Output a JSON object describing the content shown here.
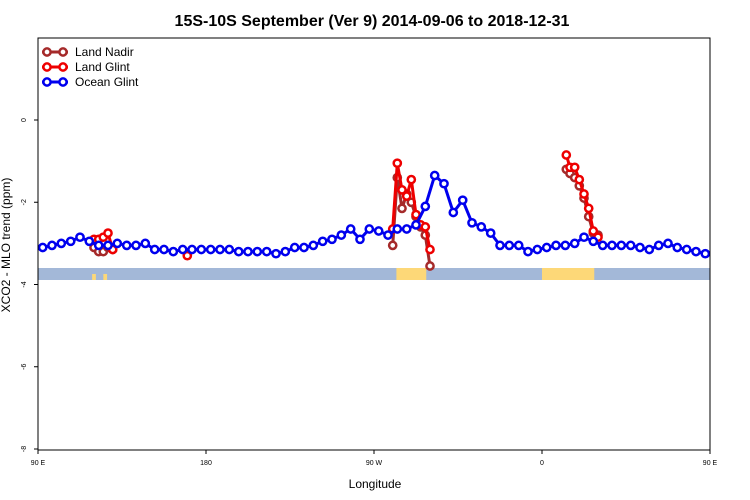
{
  "chart_data": {
    "type": "line",
    "title": "15S-10S September (Ver 9)   2014-09-06 to 2018-12-31",
    "xlabel": "Longitude",
    "ylabel": "XCO2 - MLO trend (ppm)",
    "xlim": [
      90,
      450
    ],
    "ylim": [
      -8,
      2
    ],
    "x_ticks": [
      {
        "value": 90,
        "label": "90 E"
      },
      {
        "value": 180,
        "label": "180"
      },
      {
        "value": 270,
        "label": "90 W"
      },
      {
        "value": 360,
        "label": "0"
      },
      {
        "value": 450,
        "label": "90 E"
      },
      {
        "value": 540,
        "label": "180"
      }
    ],
    "y_ticks": [
      {
        "value": 0,
        "label": "0"
      },
      {
        "value": -2,
        "label": "-2"
      },
      {
        "value": -4,
        "label": "-4"
      },
      {
        "value": -6,
        "label": "-6"
      },
      {
        "value": -8,
        "label": "-8"
      }
    ],
    "legend_position": "top-left",
    "series": [
      {
        "name": "Land Nadir",
        "color": "#a52a2a",
        "segments": [
          [
            [
              120,
              -3.1
            ],
            [
              122.5,
              -3.2
            ],
            [
              125,
              -3.2
            ],
            [
              127.5,
              -3.1
            ],
            [
              130,
              -3.15
            ]
          ],
          [
            [
              280,
              -3.05
            ],
            [
              282.5,
              -1.4
            ],
            [
              285,
              -2.15
            ],
            [
              287.5,
              -1.8
            ],
            [
              290,
              -2.0
            ],
            [
              292.5,
              -2.35
            ],
            [
              295,
              -2.6
            ],
            [
              297.5,
              -2.8
            ],
            [
              300,
              -3.55
            ]
          ],
          [
            [
              373,
              -1.2
            ],
            [
              375,
              -1.3
            ],
            [
              377.5,
              -1.4
            ],
            [
              380,
              -1.6
            ],
            [
              382.5,
              -1.9
            ],
            [
              385,
              -2.35
            ],
            [
              387.5,
              -2.75
            ],
            [
              390,
              -2.8
            ]
          ],
          [
            [
              480,
              -3.05
            ],
            [
              482.5,
              -3.2
            ],
            [
              485,
              -3.2
            ],
            [
              487.5,
              -3.15
            ],
            [
              490,
              -3.1
            ]
          ]
        ]
      },
      {
        "name": "Land Glint",
        "color": "#ee0000",
        "segments": [
          [
            [
              120,
              -2.9
            ],
            [
              122.5,
              -2.9
            ],
            [
              125,
              -2.85
            ],
            [
              127.5,
              -2.75
            ],
            [
              130,
              -3.15
            ]
          ],
          [
            [
              170,
              -3.3
            ]
          ],
          [
            [
              280,
              -2.65
            ],
            [
              282.5,
              -1.05
            ],
            [
              285,
              -1.7
            ],
            [
              287.5,
              -1.85
            ],
            [
              290,
              -1.45
            ],
            [
              292.5,
              -2.3
            ],
            [
              295,
              -2.55
            ],
            [
              297.5,
              -2.6
            ],
            [
              300,
              -3.15
            ]
          ],
          [
            [
              373,
              -0.85
            ],
            [
              375,
              -1.15
            ],
            [
              377.5,
              -1.15
            ],
            [
              380,
              -1.45
            ],
            [
              382.5,
              -1.8
            ],
            [
              385,
              -2.15
            ],
            [
              387.5,
              -2.7
            ],
            [
              390,
              -2.85
            ]
          ],
          [
            [
              480,
              -2.95
            ],
            [
              482.5,
              -2.9
            ],
            [
              485,
              -2.85
            ],
            [
              487.5,
              -2.8
            ],
            [
              490,
              -3.15
            ]
          ]
        ]
      },
      {
        "name": "Ocean Glint",
        "color": "#0000ee",
        "segments": [
          [
            [
              92.5,
              -3.1
            ],
            [
              97.5,
              -3.05
            ],
            [
              102.5,
              -3.0
            ],
            [
              107.5,
              -2.95
            ],
            [
              112.5,
              -2.85
            ],
            [
              117.5,
              -2.95
            ],
            [
              122.5,
              -3.05
            ],
            [
              127.5,
              -3.05
            ],
            [
              132.5,
              -3.0
            ],
            [
              137.5,
              -3.05
            ],
            [
              142.5,
              -3.05
            ],
            [
              147.5,
              -3.0
            ],
            [
              152.5,
              -3.15
            ],
            [
              157.5,
              -3.15
            ],
            [
              162.5,
              -3.2
            ],
            [
              167.5,
              -3.15
            ],
            [
              172.5,
              -3.15
            ],
            [
              177.5,
              -3.15
            ],
            [
              182.5,
              -3.15
            ],
            [
              187.5,
              -3.15
            ],
            [
              192.5,
              -3.15
            ],
            [
              197.5,
              -3.2
            ],
            [
              202.5,
              -3.2
            ],
            [
              207.5,
              -3.2
            ],
            [
              212.5,
              -3.2
            ],
            [
              217.5,
              -3.25
            ],
            [
              222.5,
              -3.2
            ],
            [
              227.5,
              -3.1
            ],
            [
              232.5,
              -3.1
            ],
            [
              237.5,
              -3.05
            ],
            [
              242.5,
              -2.95
            ],
            [
              247.5,
              -2.9
            ],
            [
              252.5,
              -2.8
            ],
            [
              257.5,
              -2.65
            ],
            [
              262.5,
              -2.9
            ],
            [
              267.5,
              -2.65
            ],
            [
              272.5,
              -2.7
            ],
            [
              277.5,
              -2.8
            ],
            [
              282.5,
              -2.65
            ],
            [
              287.5,
              -2.65
            ],
            [
              292.5,
              -2.55
            ],
            [
              297.5,
              -2.1
            ],
            [
              302.5,
              -1.35
            ],
            [
              307.5,
              -1.55
            ],
            [
              312.5,
              -2.25
            ],
            [
              317.5,
              -1.95
            ],
            [
              322.5,
              -2.5
            ],
            [
              327.5,
              -2.6
            ],
            [
              332.5,
              -2.75
            ],
            [
              337.5,
              -3.05
            ],
            [
              342.5,
              -3.05
            ],
            [
              347.5,
              -3.05
            ],
            [
              352.5,
              -3.2
            ],
            [
              357.5,
              -3.15
            ],
            [
              362.5,
              -3.1
            ],
            [
              367.5,
              -3.05
            ],
            [
              372.5,
              -3.05
            ],
            [
              377.5,
              -3.0
            ],
            [
              382.5,
              -2.85
            ],
            [
              387.5,
              -2.95
            ],
            [
              392.5,
              -3.05
            ],
            [
              397.5,
              -3.05
            ],
            [
              402.5,
              -3.05
            ],
            [
              407.5,
              -3.05
            ],
            [
              412.5,
              -3.1
            ],
            [
              417.5,
              -3.15
            ],
            [
              422.5,
              -3.05
            ],
            [
              427.5,
              -3.0
            ],
            [
              432.5,
              -3.1
            ],
            [
              437.5,
              -3.15
            ],
            [
              442.5,
              -3.2
            ],
            [
              447.5,
              -3.25
            ]
          ]
        ]
      }
    ],
    "background_bands": [
      {
        "label": "ocean",
        "color": "#a3b8d8"
      },
      {
        "label": "land",
        "color": "#fdd878"
      }
    ]
  }
}
